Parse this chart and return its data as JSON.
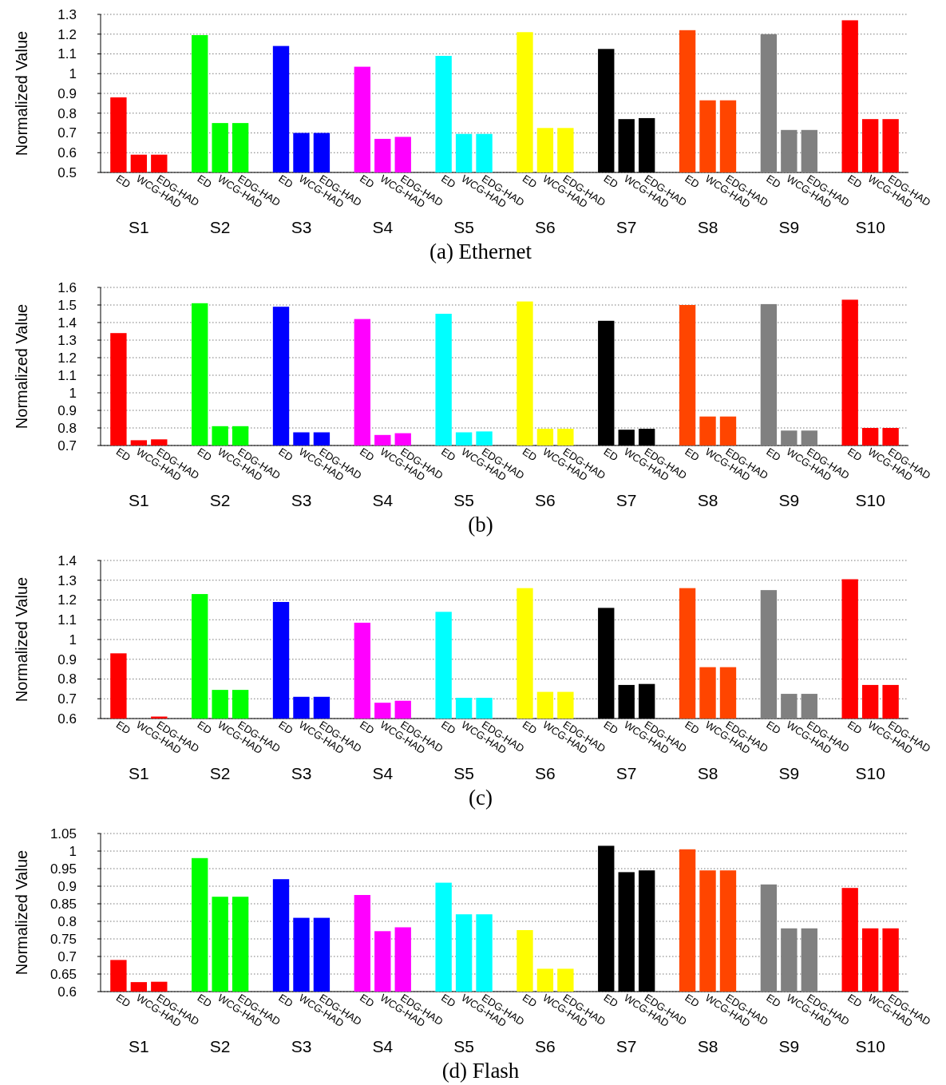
{
  "chart_data": [
    {
      "type": "bar",
      "title": "(a) Ethernet",
      "ylabel": "Normalized Value",
      "categories": [
        "S1",
        "S2",
        "S3",
        "S4",
        "S5",
        "S6",
        "S7",
        "S8",
        "S9",
        "S10"
      ],
      "ylim": [
        0.5,
        1.3
      ],
      "yticks": [
        0.5,
        0.6,
        0.7,
        0.8,
        0.9,
        1,
        1.1,
        1.2,
        1.3
      ],
      "grid": "y",
      "series": [
        {
          "name": "ED",
          "colors": [
            "#ff0000",
            "#00ff00",
            "#0000ff",
            "#ff00ff",
            "#00ffff",
            "#ffff00",
            "#000000",
            "#ff4500",
            "#808080",
            "#ff0000"
          ],
          "values": [
            0.88,
            1.195,
            1.14,
            1.035,
            1.09,
            1.21,
            1.125,
            1.22,
            1.2,
            1.27
          ]
        },
        {
          "name": "WCG-HAD",
          "colors": [
            "#ff0000",
            "#00ff00",
            "#0000ff",
            "#ff00ff",
            "#00ffff",
            "#ffff00",
            "#000000",
            "#ff4500",
            "#808080",
            "#ff0000"
          ],
          "values": [
            0.59,
            0.75,
            0.7,
            0.67,
            0.695,
            0.725,
            0.77,
            0.865,
            0.715,
            0.77
          ]
        },
        {
          "name": "EDG-HAD",
          "colors": [
            "#ff0000",
            "#00ff00",
            "#0000ff",
            "#ff00ff",
            "#00ffff",
            "#ffff00",
            "#000000",
            "#ff4500",
            "#808080",
            "#ff0000"
          ],
          "values": [
            0.59,
            0.75,
            0.7,
            0.68,
            0.695,
            0.725,
            0.775,
            0.865,
            0.715,
            0.77
          ]
        }
      ]
    },
    {
      "type": "bar",
      "title": "(b)",
      "ylabel": "Normalized Value",
      "categories": [
        "S1",
        "S2",
        "S3",
        "S4",
        "S5",
        "S6",
        "S7",
        "S8",
        "S9",
        "S10"
      ],
      "ylim": [
        0.7,
        1.6
      ],
      "yticks": [
        0.7,
        0.8,
        0.9,
        1,
        1.1,
        1.2,
        1.3,
        1.4,
        1.5,
        1.6
      ],
      "grid": "y",
      "series": [
        {
          "name": "ED",
          "colors": [
            "#ff0000",
            "#00ff00",
            "#0000ff",
            "#ff00ff",
            "#00ffff",
            "#ffff00",
            "#000000",
            "#ff4500",
            "#808080",
            "#ff0000"
          ],
          "values": [
            1.34,
            1.51,
            1.49,
            1.42,
            1.45,
            1.52,
            1.41,
            1.5,
            1.505,
            1.53
          ]
        },
        {
          "name": "WCG-HAD",
          "colors": [
            "#ff0000",
            "#00ff00",
            "#0000ff",
            "#ff00ff",
            "#00ffff",
            "#ffff00",
            "#000000",
            "#ff4500",
            "#808080",
            "#ff0000"
          ],
          "values": [
            0.73,
            0.81,
            0.775,
            0.76,
            0.775,
            0.795,
            0.79,
            0.865,
            0.785,
            0.8
          ]
        },
        {
          "name": "EDG-HAD",
          "colors": [
            "#ff0000",
            "#00ff00",
            "#0000ff",
            "#ff00ff",
            "#00ffff",
            "#ffff00",
            "#000000",
            "#ff4500",
            "#808080",
            "#ff0000"
          ],
          "values": [
            0.735,
            0.81,
            0.775,
            0.77,
            0.78,
            0.795,
            0.795,
            0.865,
            0.785,
            0.8
          ]
        }
      ]
    },
    {
      "type": "bar",
      "title": "(c)",
      "ylabel": "Normalized Value",
      "categories": [
        "S1",
        "S2",
        "S3",
        "S4",
        "S5",
        "S6",
        "S7",
        "S8",
        "S9",
        "S10"
      ],
      "ylim": [
        0.6,
        1.4
      ],
      "yticks": [
        0.6,
        0.7,
        0.8,
        0.9,
        1,
        1.1,
        1.2,
        1.3,
        1.4
      ],
      "grid": "y",
      "series": [
        {
          "name": "ED",
          "colors": [
            "#ff0000",
            "#00ff00",
            "#0000ff",
            "#ff00ff",
            "#00ffff",
            "#ffff00",
            "#000000",
            "#ff4500",
            "#808080",
            "#ff0000"
          ],
          "values": [
            0.93,
            1.23,
            1.19,
            1.085,
            1.14,
            1.26,
            1.16,
            1.26,
            1.25,
            1.305
          ]
        },
        {
          "name": "WCG-HAD",
          "colors": [
            null,
            "#00ff00",
            "#0000ff",
            "#ff00ff",
            "#00ffff",
            "#ffff00",
            "#000000",
            "#ff4500",
            "#808080",
            "#ff0000"
          ],
          "values": [
            null,
            0.745,
            0.71,
            0.68,
            0.705,
            0.735,
            0.77,
            0.86,
            0.725,
            0.77
          ]
        },
        {
          "name": "EDG-HAD",
          "colors": [
            "#ff0000",
            "#00ff00",
            "#0000ff",
            "#ff00ff",
            "#00ffff",
            "#ffff00",
            "#000000",
            "#ff4500",
            "#808080",
            "#ff0000"
          ],
          "values": [
            0.61,
            0.745,
            0.71,
            0.69,
            0.705,
            0.735,
            0.775,
            0.86,
            0.725,
            0.77
          ]
        }
      ]
    },
    {
      "type": "bar",
      "title": "(d) Flash",
      "ylabel": "Normalized Value",
      "categories": [
        "S1",
        "S2",
        "S3",
        "S4",
        "S5",
        "S6",
        "S7",
        "S8",
        "S9",
        "S10"
      ],
      "ylim": [
        0.6,
        1.05
      ],
      "yticks": [
        0.6,
        0.65,
        0.7,
        0.75,
        0.8,
        0.85,
        0.9,
        0.95,
        1,
        1.05
      ],
      "grid": "y",
      "series": [
        {
          "name": "ED",
          "colors": [
            "#ff0000",
            "#00ff00",
            "#0000ff",
            "#ff00ff",
            "#00ffff",
            "#ffff00",
            "#000000",
            "#ff4500",
            "#808080",
            "#ff0000"
          ],
          "values": [
            0.69,
            0.98,
            0.92,
            0.875,
            0.91,
            0.775,
            1.015,
            1.005,
            0.905,
            0.895
          ]
        },
        {
          "name": "WCG-HAD",
          "colors": [
            "#ff0000",
            "#00ff00",
            "#0000ff",
            "#ff00ff",
            "#00ffff",
            "#ffff00",
            "#000000",
            "#ff4500",
            "#808080",
            "#ff0000"
          ],
          "values": [
            0.627,
            0.87,
            0.81,
            0.772,
            0.82,
            0.665,
            0.94,
            0.945,
            0.78,
            0.78
          ]
        },
        {
          "name": "EDG-HAD",
          "colors": [
            "#ff0000",
            "#00ff00",
            "#0000ff",
            "#ff00ff",
            "#00ffff",
            "#ffff00",
            "#000000",
            "#ff4500",
            "#808080",
            "#ff0000"
          ],
          "values": [
            0.628,
            0.87,
            0.81,
            0.783,
            0.82,
            0.665,
            0.945,
            0.945,
            0.78,
            0.78
          ]
        }
      ]
    }
  ]
}
